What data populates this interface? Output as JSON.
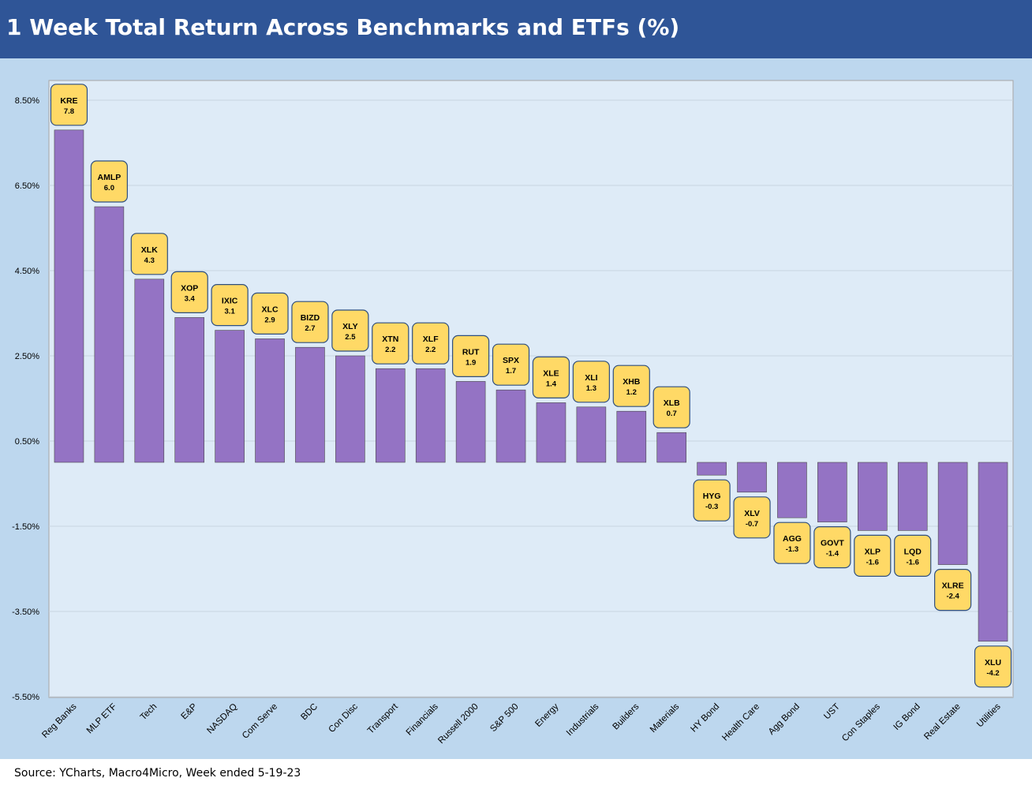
{
  "header": {
    "title": "1 Week Total Return Across Benchmarks and ETFs (%)"
  },
  "footer": {
    "source": "Source: YCharts, Macro4Micro, Week ended 5-19-23"
  },
  "colors": {
    "title_bar": "#2f5597",
    "panel": "#bdd7ee",
    "plot_area": "#deebf7",
    "bar": "#9473c4",
    "label_fill": "#ffd966",
    "label_border": "#2f4f7f",
    "gridline": "#c8d4e0"
  },
  "chart_data": {
    "type": "bar",
    "title": "1 Week Total Return Across Benchmarks and ETFs (%)",
    "xlabel": "",
    "ylabel": "",
    "ylim": [
      -5.5,
      8.5
    ],
    "yticks": [
      8.5,
      6.5,
      4.5,
      2.5,
      0.5,
      -1.5,
      -3.5,
      -5.5
    ],
    "ytick_labels": [
      "8.50%",
      "6.50%",
      "4.50%",
      "2.50%",
      "0.50%",
      "-1.50%",
      "-3.50%",
      "-5.50%"
    ],
    "grid": true,
    "legend": "none",
    "categories": [
      "Reg Banks",
      "MLP ETF",
      "Tech",
      "E&P",
      "NASDAQ",
      "Com Serve",
      "BDC",
      "Con Disc",
      "Transport",
      "Financials",
      "Russell 2000",
      "S&P 500",
      "Energy",
      "Industrials",
      "Builders",
      "Materials",
      "HY Bond",
      "Health Care",
      "Agg Bond",
      "UST",
      "Con Staples",
      "IG Bond",
      "Real Estate",
      "Utilities"
    ],
    "tickers": [
      "KRE",
      "AMLP",
      "XLK",
      "XOP",
      "IXIC",
      "XLC",
      "BIZD",
      "XLY",
      "XTN",
      "XLF",
      "RUT",
      "SPX",
      "XLE",
      "XLI",
      "XHB",
      "XLB",
      "HYG",
      "XLV",
      "AGG",
      "GOVT",
      "XLP",
      "LQD",
      "XLRE",
      "XLU"
    ],
    "values": [
      7.8,
      6.0,
      4.3,
      3.4,
      3.1,
      2.9,
      2.7,
      2.5,
      2.2,
      2.2,
      1.9,
      1.7,
      1.4,
      1.3,
      1.2,
      0.7,
      -0.3,
      -0.7,
      -1.3,
      -1.4,
      -1.6,
      -1.6,
      -2.4,
      -4.2
    ],
    "value_labels": [
      "7.8",
      "6.0",
      "4.3",
      "3.4",
      "3.1",
      "2.9",
      "2.7",
      "2.5",
      "2.2",
      "2.2",
      "1.9",
      "1.7",
      "1.4",
      "1.3",
      "1.2",
      "0.7",
      "-0.3",
      "-0.7",
      "-1.3",
      "-1.4",
      "-1.6",
      "-1.6",
      "-2.4",
      "-4.2"
    ]
  }
}
